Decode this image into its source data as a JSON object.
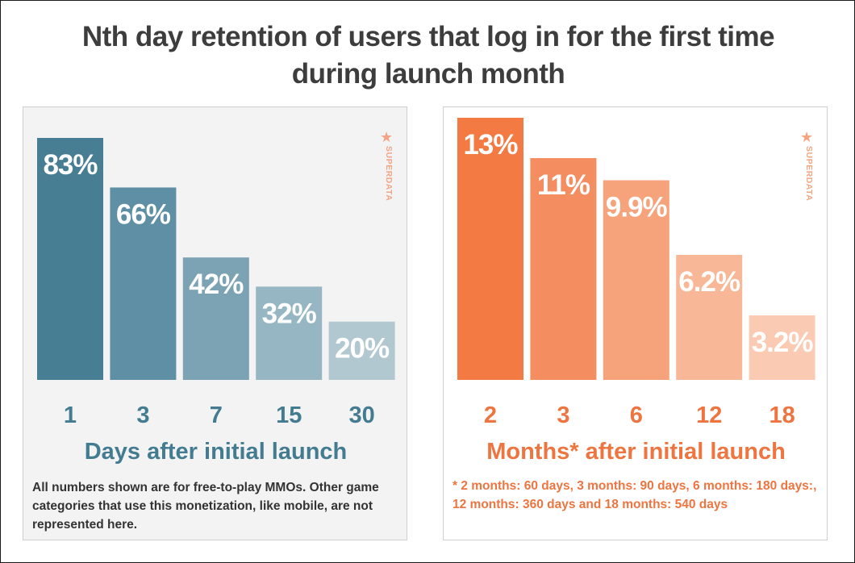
{
  "header": {
    "title_line1": "Nth day retention of users that log in for the first time",
    "title_line2": "during launch month"
  },
  "watermark": {
    "star": "★",
    "text": "SUPERDATA"
  },
  "chart_data": [
    {
      "type": "bar",
      "categories": [
        "1",
        "3",
        "7",
        "15",
        "30"
      ],
      "values": [
        83,
        66,
        42,
        32,
        20
      ],
      "labels": [
        "83%",
        "66%",
        "42%",
        "32%",
        "20%"
      ],
      "xlabel": "Days after initial launch",
      "ylim": [
        0,
        83
      ],
      "colors": [
        "#477e94",
        "#5f8fa4",
        "#7ca3b3",
        "#97b6c3",
        "#b2c8d1"
      ],
      "axis_color": "#437c91",
      "footnote": "All numbers shown are for free-to-play MMOs. Other game categories that use this monetization, like mobile, are not represented here."
    },
    {
      "type": "bar",
      "categories": [
        "2",
        "3",
        "6",
        "12",
        "18"
      ],
      "values": [
        13,
        11,
        9.9,
        6.2,
        3.2
      ],
      "labels": [
        "13%",
        "11%",
        "9.9%",
        "6.2%",
        "3.2%"
      ],
      "xlabel": "Months* after initial launch",
      "ylim": [
        0,
        13
      ],
      "colors": [
        "#f37a43",
        "#f48e61",
        "#f6a27b",
        "#f8b898",
        "#facab2"
      ],
      "axis_color": "#ee7440",
      "footnote": "* 2 months: 60 days, 3 months: 90 days, 6 months: 180 days:, 12 months: 360 days and 18 months: 540 days"
    }
  ]
}
